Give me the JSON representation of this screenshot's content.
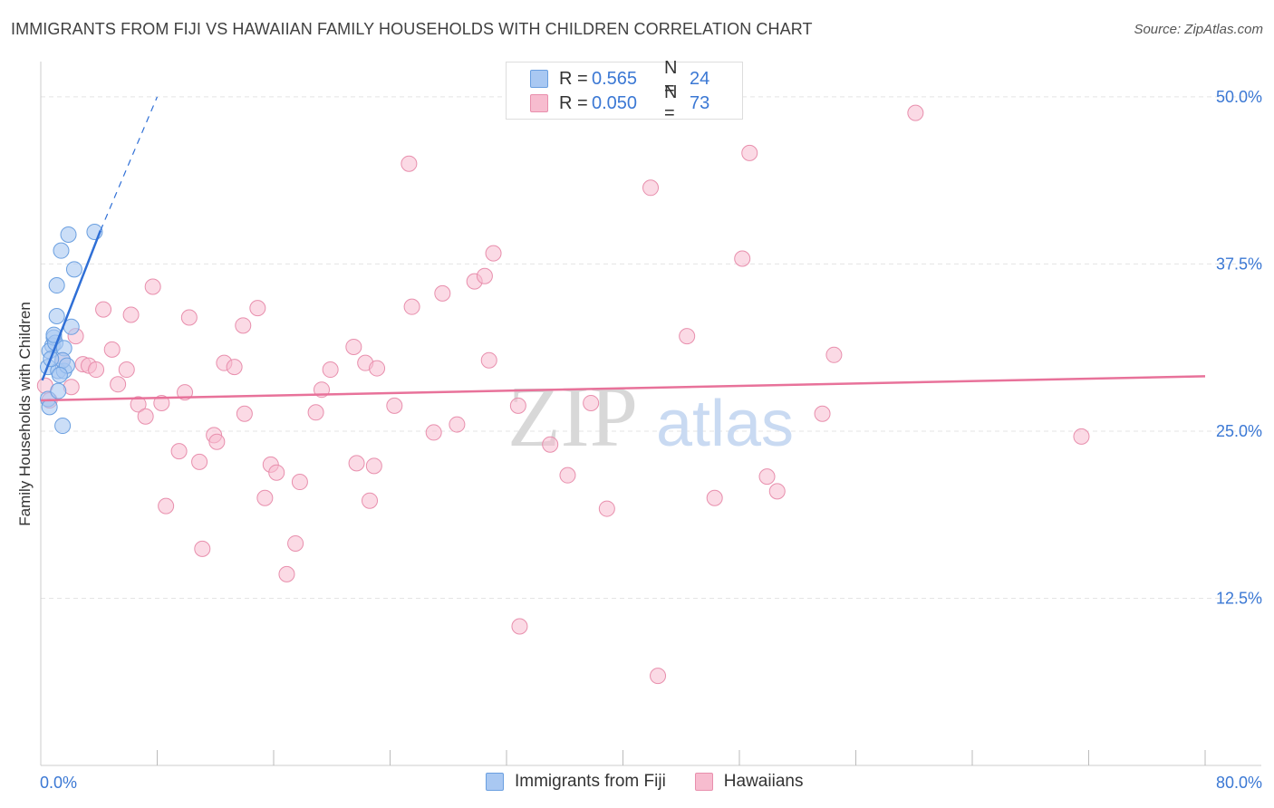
{
  "header": {
    "title": "IMMIGRANTS FROM FIJI VS HAWAIIAN FAMILY HOUSEHOLDS WITH CHILDREN CORRELATION CHART",
    "source": "Source: ZipAtlas.com"
  },
  "watermark": {
    "zip": "ZIP",
    "atlas": "atlas"
  },
  "legend": {
    "rows": [
      {
        "r_label": "R =",
        "r_value": "0.565",
        "n_label": "N =",
        "n_value": "24"
      },
      {
        "r_label": "R =",
        "r_value": "0.050",
        "n_label": "N =",
        "n_value": "73"
      }
    ]
  },
  "bottom_legend": {
    "fiji": "Immigrants from Fiji",
    "hawaiians": "Hawaiians"
  },
  "colors": {
    "fiji_fill": "#a9c8f2",
    "fiji_stroke": "#6a9fe0",
    "fiji_line": "#2f6fd6",
    "haw_fill": "#f7bccf",
    "haw_stroke": "#e88fad",
    "haw_line": "#e8729a",
    "tick_text": "#3b78d4",
    "grid": "#e4e4e4"
  },
  "chart_data": {
    "type": "scatter",
    "title": "IMMIGRANTS FROM FIJI VS HAWAIIAN FAMILY HOUSEHOLDS WITH CHILDREN CORRELATION CHART",
    "xlabel": "",
    "ylabel": "Family Households with Children",
    "xlim": [
      0,
      80
    ],
    "ylim": [
      0,
      52.5
    ],
    "x_tick_labels": [
      "0.0%",
      "80.0%"
    ],
    "y_ticks": [
      12.5,
      25.0,
      37.5,
      50.0
    ],
    "y_tick_labels": [
      "12.5%",
      "25.0%",
      "37.5%",
      "50.0%"
    ],
    "grid": true,
    "legend_position": "top-center",
    "series": [
      {
        "name": "Immigrants from Fiji",
        "R": 0.565,
        "N": 24,
        "points": [
          [
            0.5,
            29.8
          ],
          [
            0.5,
            27.4
          ],
          [
            0.8,
            31.4
          ],
          [
            0.6,
            31.0
          ],
          [
            0.9,
            32.0
          ],
          [
            1.0,
            31.6
          ],
          [
            1.1,
            33.6
          ],
          [
            1.1,
            35.9
          ],
          [
            1.2,
            29.5
          ],
          [
            1.2,
            28.0
          ],
          [
            1.4,
            38.5
          ],
          [
            1.5,
            25.4
          ],
          [
            1.6,
            31.2
          ],
          [
            1.6,
            29.5
          ],
          [
            1.5,
            30.3
          ],
          [
            1.8,
            29.9
          ],
          [
            1.9,
            39.7
          ],
          [
            2.1,
            32.8
          ],
          [
            2.3,
            37.1
          ],
          [
            3.7,
            39.9
          ],
          [
            0.6,
            26.8
          ],
          [
            0.7,
            30.4
          ],
          [
            1.3,
            29.2
          ],
          [
            0.9,
            32.2
          ]
        ],
        "trend": {
          "x_start": 0.1,
          "y_start": 28.8,
          "x_end": 4.1,
          "y_end": 40.0,
          "dashed_to_x": 8.0,
          "dashed_to_y": 50.0
        }
      },
      {
        "name": "Hawaiians",
        "R": 0.05,
        "N": 73,
        "points": [
          [
            0.3,
            28.4
          ],
          [
            0.6,
            27.3
          ],
          [
            1.5,
            30.3
          ],
          [
            2.4,
            32.1
          ],
          [
            2.9,
            30.0
          ],
          [
            3.3,
            29.9
          ],
          [
            3.8,
            29.6
          ],
          [
            4.3,
            34.1
          ],
          [
            4.9,
            31.1
          ],
          [
            5.3,
            28.5
          ],
          [
            5.9,
            29.6
          ],
          [
            6.2,
            33.7
          ],
          [
            6.7,
            27.0
          ],
          [
            7.2,
            26.1
          ],
          [
            7.7,
            35.8
          ],
          [
            8.3,
            27.1
          ],
          [
            8.6,
            19.4
          ],
          [
            9.5,
            23.5
          ],
          [
            9.9,
            27.9
          ],
          [
            10.2,
            33.5
          ],
          [
            10.9,
            22.7
          ],
          [
            11.1,
            16.2
          ],
          [
            11.9,
            24.7
          ],
          [
            12.1,
            24.2
          ],
          [
            12.6,
            30.1
          ],
          [
            13.3,
            29.8
          ],
          [
            13.9,
            32.9
          ],
          [
            14.0,
            26.3
          ],
          [
            14.9,
            34.2
          ],
          [
            15.4,
            20.0
          ],
          [
            15.8,
            22.5
          ],
          [
            16.2,
            21.9
          ],
          [
            16.9,
            14.3
          ],
          [
            17.5,
            16.6
          ],
          [
            17.8,
            21.2
          ],
          [
            18.9,
            26.4
          ],
          [
            19.3,
            28.1
          ],
          [
            19.9,
            29.6
          ],
          [
            21.5,
            31.3
          ],
          [
            21.7,
            22.6
          ],
          [
            22.6,
            19.8
          ],
          [
            22.9,
            22.4
          ],
          [
            22.3,
            30.1
          ],
          [
            23.1,
            29.7
          ],
          [
            24.3,
            26.9
          ],
          [
            25.3,
            45.0
          ],
          [
            25.5,
            34.3
          ],
          [
            27.0,
            24.9
          ],
          [
            27.6,
            35.3
          ],
          [
            28.6,
            25.5
          ],
          [
            29.8,
            36.2
          ],
          [
            30.5,
            36.6
          ],
          [
            30.8,
            30.3
          ],
          [
            31.1,
            38.3
          ],
          [
            32.9,
            10.4
          ],
          [
            32.8,
            26.9
          ],
          [
            35.0,
            24.0
          ],
          [
            36.2,
            21.7
          ],
          [
            37.8,
            27.1
          ],
          [
            38.9,
            19.2
          ],
          [
            41.9,
            43.2
          ],
          [
            42.4,
            6.7
          ],
          [
            44.4,
            32.1
          ],
          [
            46.3,
            20.0
          ],
          [
            48.2,
            37.9
          ],
          [
            48.7,
            45.8
          ],
          [
            49.9,
            21.6
          ],
          [
            50.6,
            20.5
          ],
          [
            53.7,
            26.3
          ],
          [
            54.5,
            30.7
          ],
          [
            60.1,
            48.8
          ],
          [
            71.5,
            24.6
          ],
          [
            2.1,
            28.3
          ]
        ],
        "trend": {
          "x_start": 0.0,
          "y_start": 27.3,
          "x_end": 80.0,
          "y_end": 29.1
        }
      }
    ]
  }
}
